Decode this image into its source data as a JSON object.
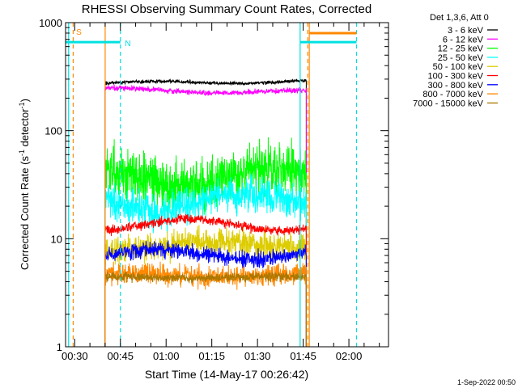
{
  "chart_data": {
    "type": "line",
    "title": "RHESSI Observing Summary Count Rates, Corrected",
    "xlabel": "Start Time (14-May-17 00:26:42)",
    "ylabel_main": "Corrected Count Rate (s",
    "ylabel_exp1": "-1",
    "ylabel_mid": " detector",
    "ylabel_exp2": "-1",
    "ylabel_end": ")",
    "footer": "1-Sep-2022 00:50",
    "x_tick_labels": [
      "00:30",
      "00:45",
      "01:00",
      "01:15",
      "01:30",
      "01:45",
      "02:00"
    ],
    "x_tick_minutes": [
      30,
      45,
      60,
      75,
      90,
      105,
      120
    ],
    "x_range_minutes": [
      27,
      133
    ],
    "y_scale": "log",
    "y_range": [
      1,
      1000
    ],
    "y_tick_labels": [
      "1",
      "10",
      "100",
      "1000"
    ],
    "y_tick_values": [
      1,
      10,
      100,
      1000
    ],
    "legend_header": "Det 1,3,6, Att 0",
    "legend_placement": "right",
    "series": [
      {
        "name": "3 - 6 keV",
        "color": "#000000",
        "start": 40,
        "end": 106,
        "base": 275,
        "amp": 0.03,
        "noise": 0.03,
        "trend": 0.04
      },
      {
        "name": "6 - 12 keV",
        "color": "#ff00ff",
        "start": 40,
        "end": 106,
        "base": 240,
        "amp": 0.04,
        "noise": 0.05,
        "trend": -0.06
      },
      {
        "name": "12 - 25 keV",
        "color": "#00ff00",
        "start": 40,
        "end": 106,
        "base": 38,
        "amp": 0.18,
        "noise": 0.45,
        "trend": 0
      },
      {
        "name": "25 - 50 keV",
        "color": "#00ffff",
        "start": 40,
        "end": 106,
        "base": 22,
        "amp": 0.18,
        "noise": 0.32,
        "trend": 0
      },
      {
        "name": "50 - 100 keV",
        "color": "#ddcc00",
        "start": 40,
        "end": 106,
        "base": 8.5,
        "amp": 0.08,
        "noise": 0.25,
        "trend": 0.05
      },
      {
        "name": "100 - 300 keV",
        "color": "#ff0000",
        "start": 40,
        "end": 106,
        "base": 13.5,
        "amp": 0.12,
        "noise": 0.08,
        "trend": 0
      },
      {
        "name": "300 - 800 keV",
        "color": "#0000ff",
        "start": 40,
        "end": 106,
        "base": 7.2,
        "amp": 0.1,
        "noise": 0.14,
        "trend": 0
      },
      {
        "name": "800 - 7000 keV",
        "color": "#ff8800",
        "start": 40,
        "end": 106,
        "base": 4.6,
        "amp": 0.04,
        "noise": 0.18,
        "trend": 0
      },
      {
        "name": "7000 - 15000 keV",
        "color": "#aa7700",
        "start": 40,
        "end": 106,
        "base": 4.4,
        "amp": 0.02,
        "noise": 0.08,
        "trend": 0
      }
    ],
    "markers": [
      {
        "type": "vline",
        "x": 28,
        "style": "solid",
        "color": "#00e0e0"
      },
      {
        "type": "vline",
        "x": 29.5,
        "style": "dashed",
        "color": "#ff8800"
      },
      {
        "type": "vline",
        "x": 45,
        "style": "dashed",
        "color": "#00e0e0"
      },
      {
        "type": "vline",
        "x": 40,
        "style": "solid",
        "color": "#ff8800"
      },
      {
        "type": "vline",
        "x": 104,
        "style": "solid",
        "color": "#00e0e0"
      },
      {
        "type": "vline",
        "x": 107,
        "style": "solid",
        "color": "#ff8800"
      },
      {
        "type": "vline",
        "x": 106.5,
        "style": "dashed",
        "color": "#ff8800"
      },
      {
        "type": "vline",
        "x": 122.5,
        "style": "dashed",
        "color": "#00e0e0"
      }
    ],
    "intervals": [
      {
        "x0": 27,
        "x1": 45,
        "y": 660,
        "color": "#00e0e0"
      },
      {
        "x0": 104,
        "x1": 122.5,
        "y": 660,
        "color": "#00e0e0"
      },
      {
        "x0": 107,
        "x1": 122.5,
        "y": 800,
        "color": "#ff8800"
      }
    ],
    "labels": [
      {
        "text": "S",
        "x": 30.5,
        "y": 830,
        "color": "#ff8800"
      },
      {
        "text": "N",
        "x": 46.5,
        "y": 650,
        "color": "#00e0e0"
      }
    ]
  }
}
